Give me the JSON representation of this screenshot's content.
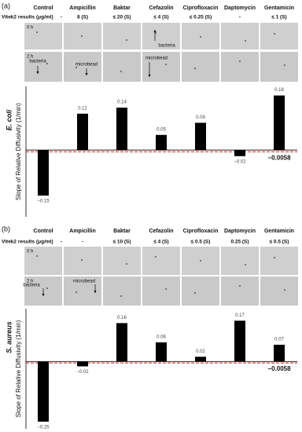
{
  "chart_data": [
    {
      "type": "bar",
      "panel": "(a)",
      "organism": "E. coli",
      "ylabel": "Slope of Relative Diffusivity (1/min)",
      "categories": [
        "Control",
        "Ampicillin",
        "Baktar",
        "Cefazolin",
        "Ciprofloxacin",
        "Daptomycin",
        "Gentamicin"
      ],
      "vitek_label": "Vitek2 results (μg/ml)",
      "vitek_results": [
        "-",
        "8 (S)",
        "≤ 20 (S)",
        "≤ 4 (S)",
        "≤ 0.25 (S)",
        "-",
        "≤ 1 (S)"
      ],
      "time_labels": [
        "0 h",
        "2 h"
      ],
      "annotations": [
        "bacteria",
        "microbead",
        "bacteria",
        "microbead"
      ],
      "values": [
        -0.15,
        0.12,
        0.14,
        0.05,
        0.09,
        -0.02,
        0.18
      ],
      "value_labels": [
        "−0.15",
        "0.12",
        "0.14",
        "0.05",
        "0.09",
        "−0.02",
        "0.18"
      ],
      "color": "#000000",
      "threshold": {
        "value": -0.0058,
        "label": "−0.0058"
      },
      "threshold_color": "#e02020",
      "ylim": [
        -0.22,
        0.21
      ]
    },
    {
      "type": "bar",
      "panel": "(b)",
      "organism": "S. aureus",
      "ylabel": "Slope of Relative Diffusivity (1/min)",
      "categories": [
        "Control",
        "Ampicillin",
        "Baktar",
        "Cefazolin",
        "Ciprofloxacin",
        "Daptomycin",
        "Gentamicin"
      ],
      "vitek_label": "Vitek2 results (μg/ml)",
      "vitek_results": [
        "-",
        "-",
        "≤ 10 (S)",
        "≤ 4 (S)",
        "≤ 0.5 (S)",
        "0.25 (S)",
        "≤ 0.5 (S)"
      ],
      "time_labels": [
        "0 h",
        "2 h"
      ],
      "annotations": [
        "bacteria",
        "microbead"
      ],
      "values": [
        -0.25,
        -0.02,
        0.16,
        0.08,
        0.02,
        0.17,
        0.07
      ],
      "value_labels": [
        "−0.25",
        "−0.02",
        "0.16",
        "0.08",
        "0.02",
        "0.17",
        "0.07"
      ],
      "color": "#000000",
      "threshold": {
        "value": -0.0058,
        "label": "−0.0058"
      },
      "threshold_color": "#e02020",
      "ylim": [
        -0.28,
        0.22
      ]
    }
  ]
}
